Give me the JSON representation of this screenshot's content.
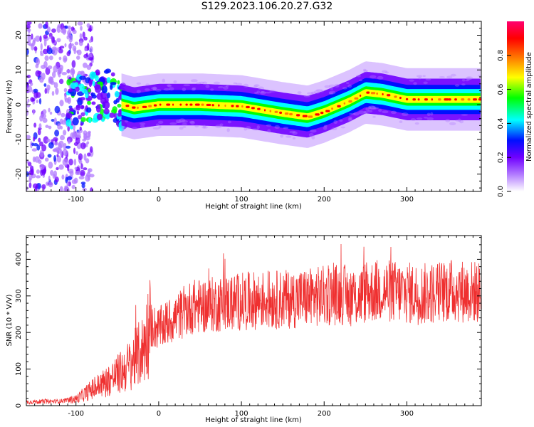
{
  "title": "S129.2023.106.20.27.G32",
  "chart_data": [
    {
      "type": "heatmap",
      "xlabel": "Height of straight line (km)",
      "ylabel": "Frequency (Hz)",
      "xlim": [
        -160,
        390
      ],
      "ylim": [
        -25,
        24
      ],
      "xticks": [
        -100,
        0,
        100,
        200,
        300
      ],
      "yticks": [
        -20,
        -10,
        0,
        10,
        20
      ],
      "colorbar": {
        "label": "Normalized spectral amplitude",
        "range": [
          0.0,
          1.0
        ],
        "ticks": [
          0.0,
          0.2,
          0.4,
          0.6,
          0.8
        ],
        "colormap": [
          "#ffffff",
          "#b27bff",
          "#7000ff",
          "#0010ff",
          "#00ffff",
          "#00ff00",
          "#ffff00",
          "#ff8000",
          "#ff0000",
          "#ff0070"
        ]
      },
      "ridge": {
        "x": [
          -110,
          -80,
          -60,
          -45,
          -30,
          0,
          50,
          100,
          150,
          180,
          200,
          230,
          250,
          270,
          300,
          330,
          360,
          390
        ],
        "y": [
          0,
          2,
          3,
          0,
          -1,
          0,
          0,
          -0.5,
          -2.5,
          -3.5,
          -2,
          1,
          3.5,
          3,
          1.5,
          1.5,
          1.5,
          1.5
        ]
      }
    },
    {
      "type": "line",
      "xlabel": "Height of straight line (km)",
      "ylabel": "SNR (10 * V/V)",
      "xlim": [
        -160,
        390
      ],
      "ylim": [
        0,
        465
      ],
      "xticks": [
        -100,
        0,
        100,
        200,
        300
      ],
      "yticks": [
        0,
        100,
        200,
        300,
        400
      ],
      "color": "#ef3030",
      "series": [
        {
          "x": [
            -160,
            -120,
            -100,
            -80,
            -60,
            -40,
            -20,
            -10,
            0,
            20,
            40,
            60,
            80,
            100,
            120,
            150,
            180,
            200,
            220,
            240,
            250,
            270,
            290,
            320,
            350,
            390
          ],
          "y": [
            10,
            12,
            18,
            45,
            70,
            100,
            150,
            220,
            210,
            240,
            270,
            275,
            280,
            285,
            288,
            290,
            295,
            300,
            305,
            295,
            310,
            315,
            310,
            305,
            315,
            310
          ]
        }
      ]
    }
  ]
}
